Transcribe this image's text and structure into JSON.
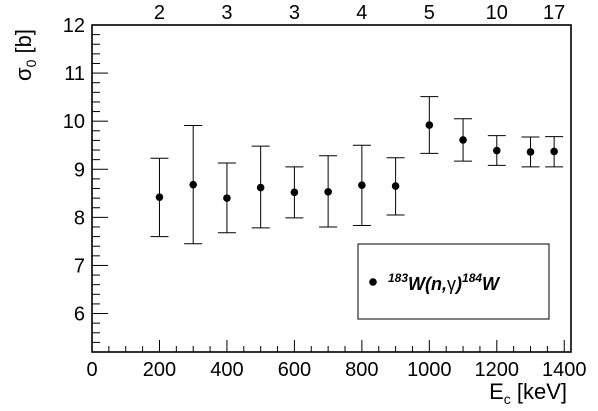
{
  "chart_data": {
    "type": "scatter",
    "xlabel": "E",
    "xlabel_sub": "c",
    "xlabel_unit": " [keV]",
    "ylabel": "σ",
    "ylabel_sub": "0",
    "ylabel_unit": " [b]",
    "xlim": [
      0,
      1420
    ],
    "ylim": [
      5.2,
      12
    ],
    "x_major_ticks": [
      0,
      200,
      400,
      600,
      800,
      1000,
      1200,
      1400
    ],
    "x_minor_step": 50,
    "y_major_ticks": [
      6,
      7,
      8,
      9,
      10,
      11,
      12
    ],
    "y_minor_step": 0.2,
    "grid": false,
    "top_axis_labels": [
      {
        "x": 200,
        "label": "2"
      },
      {
        "x": 400,
        "label": "3"
      },
      {
        "x": 600,
        "label": "3"
      },
      {
        "x": 800,
        "label": "4"
      },
      {
        "x": 1000,
        "label": "5"
      },
      {
        "x": 1200,
        "label": "10"
      },
      {
        "x": 1370,
        "label": "17"
      }
    ],
    "series": [
      {
        "name": "183W(n,γ)184W",
        "x": [
          200,
          300,
          400,
          500,
          600,
          700,
          800,
          900,
          1000,
          1100,
          1200,
          1300,
          1370
        ],
        "y": [
          8.42,
          8.68,
          8.4,
          8.62,
          8.52,
          8.53,
          8.67,
          8.65,
          9.92,
          9.61,
          9.39,
          9.36,
          9.37
        ],
        "err_low": [
          7.6,
          7.45,
          7.68,
          7.78,
          7.99,
          7.8,
          7.83,
          8.05,
          9.33,
          9.17,
          9.08,
          9.05,
          9.05
        ],
        "err_high": [
          9.23,
          9.91,
          9.13,
          9.48,
          9.05,
          9.28,
          9.5,
          9.24,
          10.51,
          10.05,
          9.7,
          9.67,
          9.68
        ]
      }
    ],
    "legend": {
      "placement": "bottom-right",
      "pre1": "183",
      "text1": "W(n,",
      "greek": "γ",
      "text2": ")",
      "pre2": "184",
      "text3": "W"
    }
  }
}
